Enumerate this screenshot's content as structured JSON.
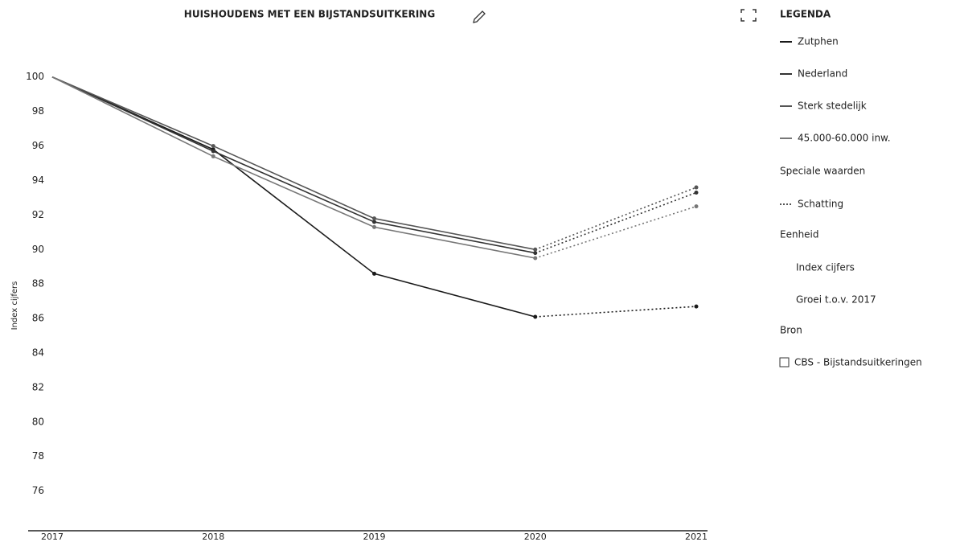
{
  "chart_data": {
    "type": "line",
    "title": "HUISHOUDENS MET EEN BIJSTANDSUITKERING",
    "y_label": "Index cijfers",
    "categories": [
      "2017",
      "2018",
      "2019",
      "2020",
      "2021"
    ],
    "estimate": [
      false,
      false,
      false,
      false,
      true
    ],
    "series": [
      {
        "name": "Zutphen",
        "color": "#1a1a1a",
        "values": [
          100,
          95.8,
          88.6,
          86.1,
          86.7
        ]
      },
      {
        "name": "Nederland",
        "color": "#333333",
        "values": [
          100,
          95.7,
          91.6,
          89.8,
          93.3
        ]
      },
      {
        "name": "Sterk stedelijk",
        "color": "#555555",
        "values": [
          100,
          96.0,
          91.8,
          90.0,
          93.6
        ]
      },
      {
        "name": "45.000-60.000 inw.",
        "color": "#777777",
        "values": [
          100,
          95.4,
          91.3,
          89.5,
          92.5
        ]
      }
    ],
    "ylim": [
      73.7,
      101.2
    ],
    "yticks": [
      76,
      78,
      80,
      82,
      84,
      86,
      88,
      90,
      92,
      94,
      96,
      98,
      100
    ],
    "legend": {
      "title": "LEGENDA",
      "special_title": "Speciale waarden",
      "estimate_label": "Schatting",
      "unit_title": "Eenheid",
      "units": [
        "Index cijfers",
        "Groei t.o.v. 2017"
      ],
      "source_title": "Bron",
      "source": "CBS - Bijstandsuitkeringen"
    }
  }
}
